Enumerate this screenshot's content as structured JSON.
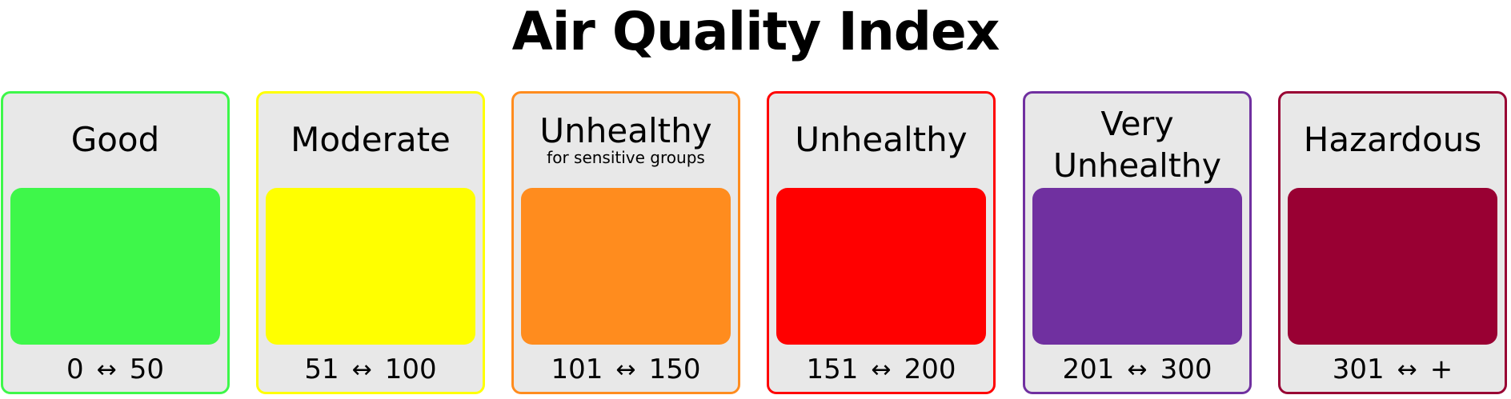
{
  "title": "Air Quality Index",
  "categories": [
    {
      "name": "Good",
      "subtitle": "",
      "range_low": "0",
      "arrow": "↔",
      "range_high": "50",
      "color": "#3ef74a",
      "border_color": "#3ef74a"
    },
    {
      "name": "Moderate",
      "subtitle": "",
      "range_low": "51",
      "arrow": "↔",
      "range_high": "100",
      "color": "#ffff00",
      "border_color": "#ffff00"
    },
    {
      "name": "Unhealthy",
      "subtitle": "for sensitive groups",
      "range_low": "101",
      "arrow": "↔",
      "range_high": "150",
      "color": "#ff8c1e",
      "border_color": "#ff8c1e"
    },
    {
      "name": "Unhealthy",
      "subtitle": "",
      "range_low": "151",
      "arrow": "↔",
      "range_high": "200",
      "color": "#ff0000",
      "border_color": "#ff0000"
    },
    {
      "name_line1": "Very",
      "name_line2": "Unhealthy",
      "subtitle": "",
      "range_low": "201",
      "arrow": "↔",
      "range_high": "300",
      "color": "#7030a0",
      "border_color": "#7030a0"
    },
    {
      "name": "Hazardous",
      "subtitle": "",
      "range_low": "301",
      "arrow": "↔",
      "range_high": "+",
      "color": "#990033",
      "border_color": "#990033"
    }
  ]
}
